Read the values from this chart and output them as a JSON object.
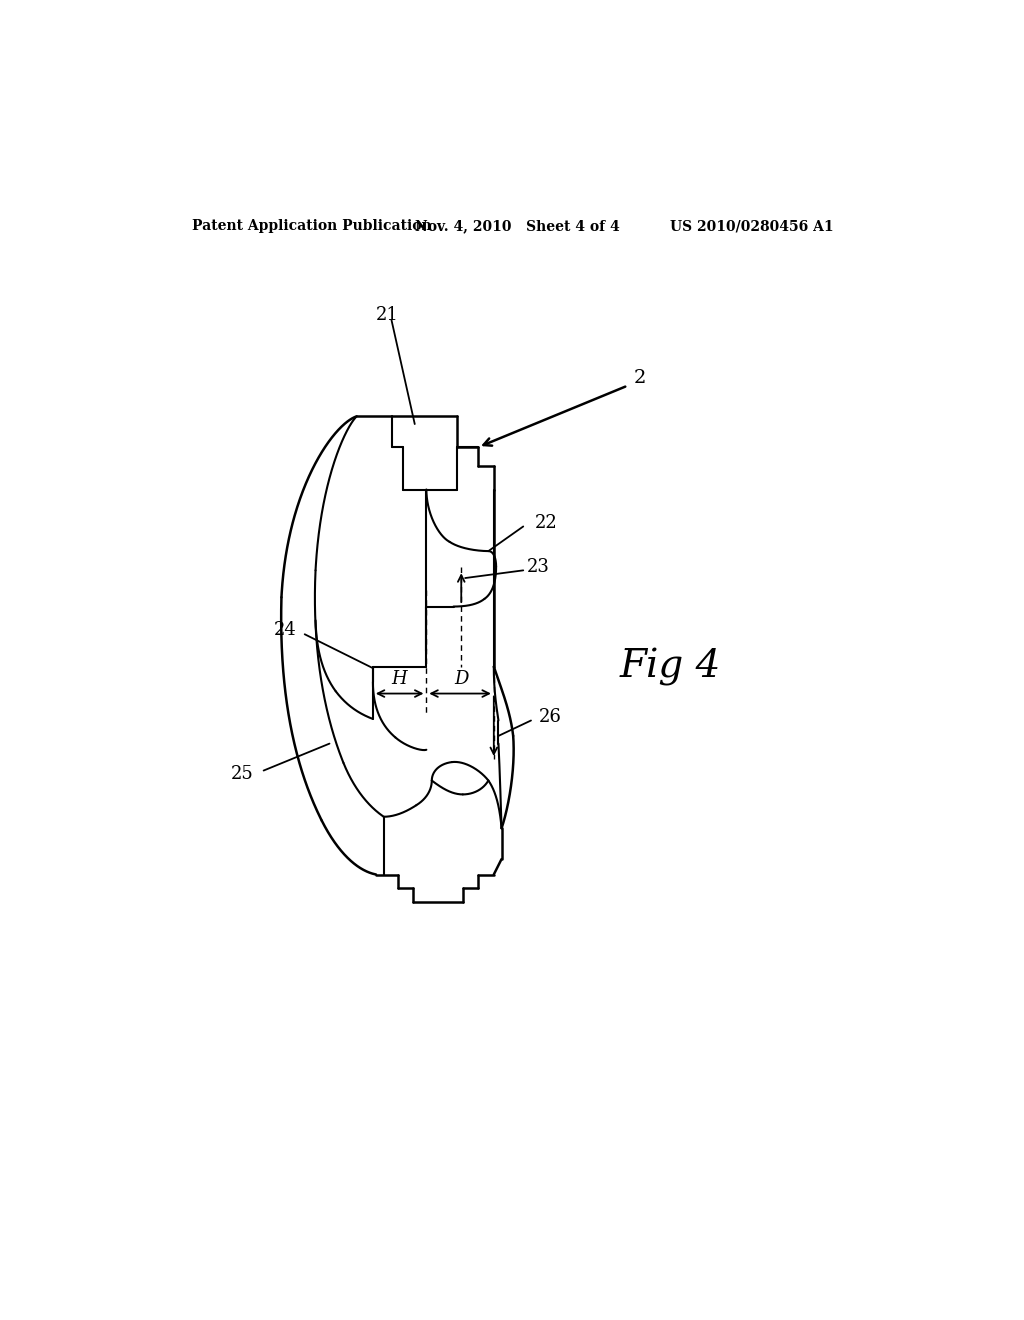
{
  "bg_color": "#ffffff",
  "line_color": "#000000",
  "header_left": "Patent Application Publication",
  "header_mid": "Nov. 4, 2010   Sheet 4 of 4",
  "header_right": "US 2010/0280456 A1",
  "fig_label": "Fig 4"
}
